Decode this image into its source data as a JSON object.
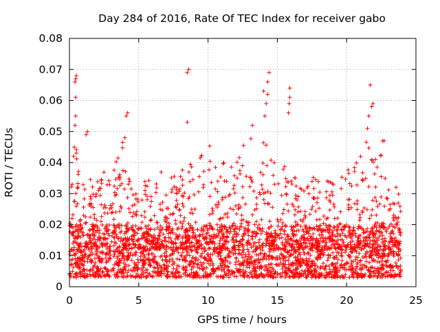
{
  "chart_data": {
    "type": "scatter",
    "title": "Day 284 of 2016, Rate Of TEC Index for receiver gabo",
    "xlabel": "GPS time / hours",
    "ylabel": "ROTI / TECUs",
    "xlim": [
      0,
      25
    ],
    "ylim": [
      0,
      0.08
    ],
    "grid": true,
    "legend": "none",
    "marker": "+",
    "x_ticks": [
      {
        "value": 0,
        "label": "0"
      },
      {
        "value": 5,
        "label": "5"
      },
      {
        "value": 10,
        "label": "10"
      },
      {
        "value": 15,
        "label": "15"
      },
      {
        "value": 20,
        "label": "20"
      },
      {
        "value": 25,
        "label": "25"
      }
    ],
    "y_ticks": [
      {
        "value": 0,
        "label": "0"
      },
      {
        "value": 0.01,
        "label": "0.01"
      },
      {
        "value": 0.02,
        "label": "0.02"
      },
      {
        "value": 0.03,
        "label": "0.03"
      },
      {
        "value": 0.04,
        "label": "0.04"
      },
      {
        "value": 0.05,
        "label": "0.05"
      },
      {
        "value": 0.06,
        "label": "0.06"
      },
      {
        "value": 0.07,
        "label": "0.07"
      },
      {
        "value": 0.08,
        "label": "0.08"
      }
    ],
    "series": [
      {
        "name": "ROTI",
        "color": "#ff0000",
        "x_range": [
          0,
          23.9
        ],
        "typical_range": [
          0.003,
          0.02
        ],
        "envelope": [
          {
            "x": 0.0,
            "ymax": 0.027
          },
          {
            "x": 0.5,
            "ymax": 0.046
          },
          {
            "x": 1.0,
            "ymax": 0.036
          },
          {
            "x": 1.5,
            "ymax": 0.036
          },
          {
            "x": 2.0,
            "ymax": 0.034
          },
          {
            "x": 2.5,
            "ymax": 0.038
          },
          {
            "x": 3.0,
            "ymax": 0.035
          },
          {
            "x": 3.5,
            "ymax": 0.042
          },
          {
            "x": 4.0,
            "ymax": 0.05
          },
          {
            "x": 4.5,
            "ymax": 0.035
          },
          {
            "x": 5.0,
            "ymax": 0.028
          },
          {
            "x": 5.5,
            "ymax": 0.035
          },
          {
            "x": 6.0,
            "ymax": 0.038
          },
          {
            "x": 6.5,
            "ymax": 0.04
          },
          {
            "x": 7.0,
            "ymax": 0.036
          },
          {
            "x": 7.5,
            "ymax": 0.036
          },
          {
            "x": 8.0,
            "ymax": 0.038
          },
          {
            "x": 8.5,
            "ymax": 0.04
          },
          {
            "x": 9.0,
            "ymax": 0.042
          },
          {
            "x": 9.5,
            "ymax": 0.046
          },
          {
            "x": 10.0,
            "ymax": 0.047
          },
          {
            "x": 10.5,
            "ymax": 0.04
          },
          {
            "x": 11.0,
            "ymax": 0.04
          },
          {
            "x": 11.5,
            "ymax": 0.044
          },
          {
            "x": 12.0,
            "ymax": 0.044
          },
          {
            "x": 12.5,
            "ymax": 0.046
          },
          {
            "x": 13.0,
            "ymax": 0.05
          },
          {
            "x": 13.5,
            "ymax": 0.042
          },
          {
            "x": 14.0,
            "ymax": 0.048
          },
          {
            "x": 14.5,
            "ymax": 0.042
          },
          {
            "x": 15.0,
            "ymax": 0.04
          },
          {
            "x": 15.5,
            "ymax": 0.04
          },
          {
            "x": 16.0,
            "ymax": 0.038
          },
          {
            "x": 16.5,
            "ymax": 0.036
          },
          {
            "x": 17.0,
            "ymax": 0.03
          },
          {
            "x": 17.5,
            "ymax": 0.036
          },
          {
            "x": 18.0,
            "ymax": 0.038
          },
          {
            "x": 18.5,
            "ymax": 0.036
          },
          {
            "x": 19.0,
            "ymax": 0.034
          },
          {
            "x": 19.5,
            "ymax": 0.04
          },
          {
            "x": 20.0,
            "ymax": 0.046
          },
          {
            "x": 20.5,
            "ymax": 0.042
          },
          {
            "x": 21.0,
            "ymax": 0.042
          },
          {
            "x": 21.5,
            "ymax": 0.048
          },
          {
            "x": 22.0,
            "ymax": 0.04
          },
          {
            "x": 22.5,
            "ymax": 0.047
          },
          {
            "x": 23.0,
            "ymax": 0.04
          },
          {
            "x": 23.5,
            "ymax": 0.035
          },
          {
            "x": 23.9,
            "ymax": 0.028
          }
        ],
        "outliers": [
          {
            "x": 0.2,
            "y": 0.033
          },
          {
            "x": 0.3,
            "y": 0.042
          },
          {
            "x": 0.35,
            "y": 0.045
          },
          {
            "x": 0.4,
            "y": 0.052
          },
          {
            "x": 0.45,
            "y": 0.055
          },
          {
            "x": 0.45,
            "y": 0.061
          },
          {
            "x": 0.4,
            "y": 0.066
          },
          {
            "x": 0.45,
            "y": 0.067
          },
          {
            "x": 0.5,
            "y": 0.068
          },
          {
            "x": 1.2,
            "y": 0.049
          },
          {
            "x": 1.3,
            "y": 0.05
          },
          {
            "x": 4.0,
            "y": 0.048
          },
          {
            "x": 4.1,
            "y": 0.055
          },
          {
            "x": 4.2,
            "y": 0.056
          },
          {
            "x": 8.5,
            "y": 0.053
          },
          {
            "x": 8.5,
            "y": 0.069
          },
          {
            "x": 8.6,
            "y": 0.07
          },
          {
            "x": 13.2,
            "y": 0.052
          },
          {
            "x": 14.1,
            "y": 0.055
          },
          {
            "x": 14.2,
            "y": 0.059
          },
          {
            "x": 14.3,
            "y": 0.062
          },
          {
            "x": 14.0,
            "y": 0.063
          },
          {
            "x": 14.3,
            "y": 0.066
          },
          {
            "x": 14.4,
            "y": 0.069
          },
          {
            "x": 15.8,
            "y": 0.056
          },
          {
            "x": 15.85,
            "y": 0.059
          },
          {
            "x": 15.9,
            "y": 0.061
          },
          {
            "x": 15.9,
            "y": 0.064
          },
          {
            "x": 21.5,
            "y": 0.051
          },
          {
            "x": 21.6,
            "y": 0.055
          },
          {
            "x": 21.8,
            "y": 0.058
          },
          {
            "x": 21.9,
            "y": 0.059
          },
          {
            "x": 21.7,
            "y": 0.065
          },
          {
            "x": 22.6,
            "y": 0.047
          },
          {
            "x": 22.7,
            "y": 0.047
          }
        ]
      }
    ]
  }
}
